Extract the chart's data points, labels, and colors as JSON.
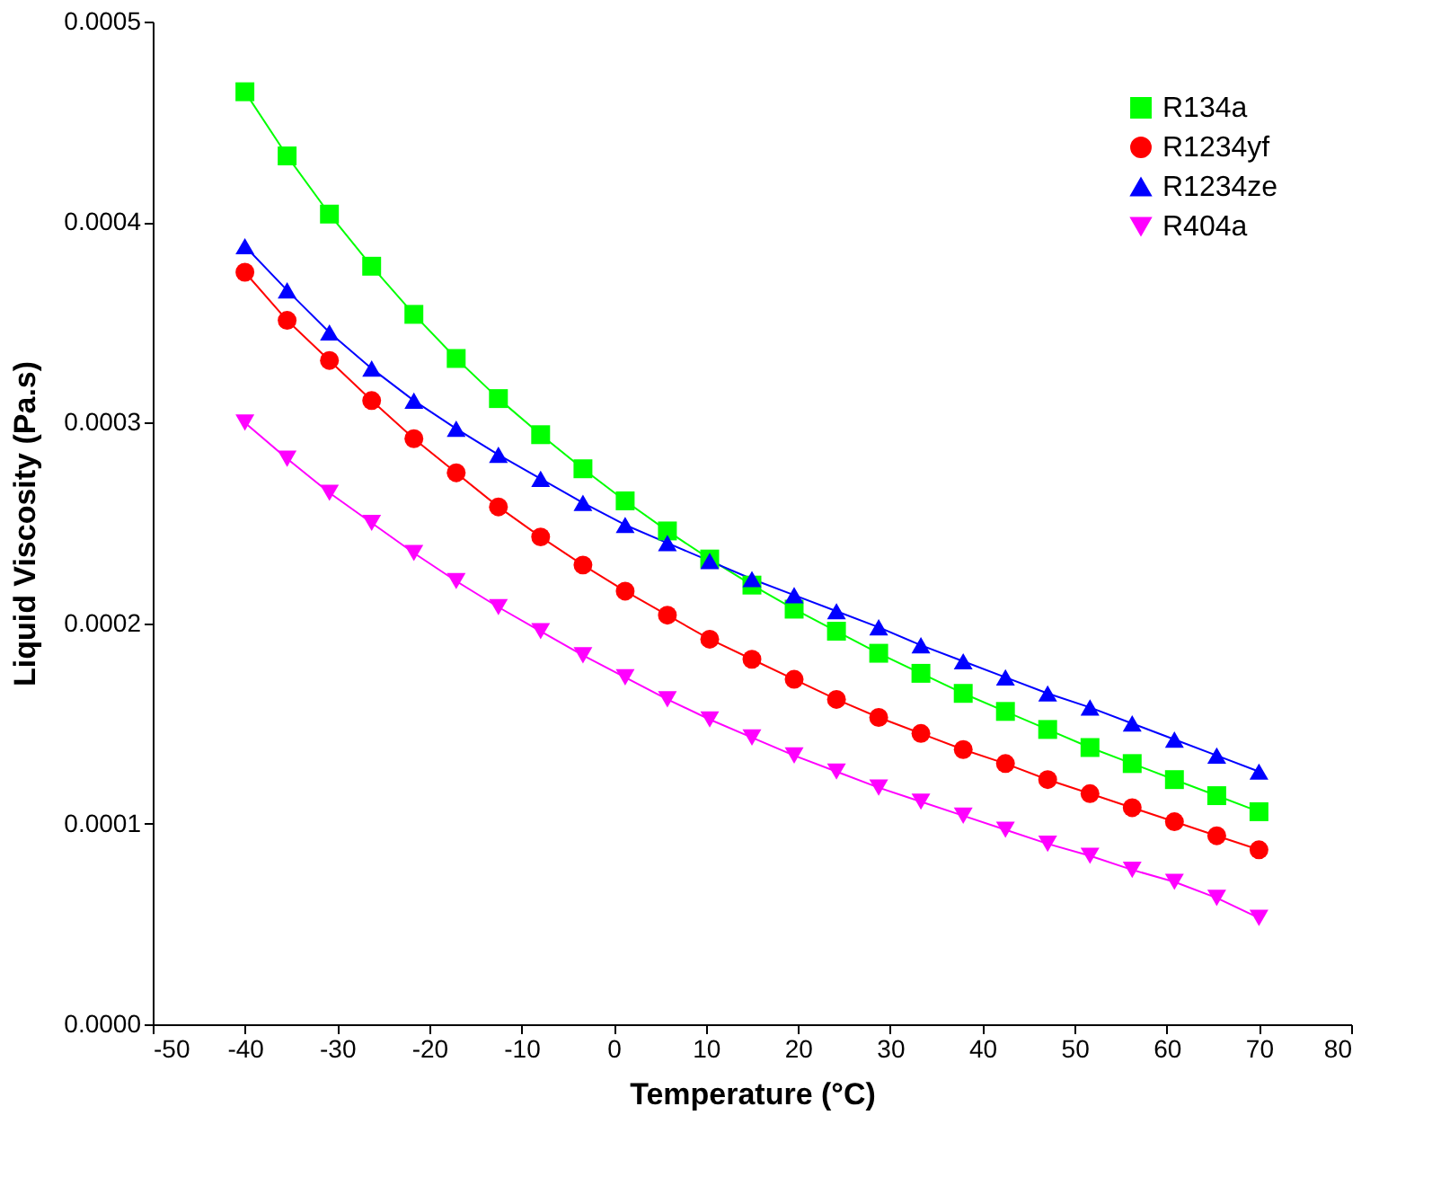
{
  "chart_data": {
    "type": "line",
    "xlabel": "Temperature (°C)",
    "ylabel": "Liquid Viscosity (Pa.s)",
    "x": [
      -40,
      -35.42,
      -30.83,
      -26.25,
      -21.67,
      -17.08,
      -12.5,
      -7.92,
      -3.33,
      1.25,
      5.83,
      10.42,
      15,
      19.58,
      24.17,
      28.75,
      33.33,
      37.92,
      42.5,
      47.08,
      51.67,
      56.25,
      60.83,
      65.42,
      70
    ],
    "series": [
      {
        "name": "R134a",
        "color": "#00ff00",
        "marker": "square",
        "values": [
          0.000465,
          0.000433,
          0.000404,
          0.000378,
          0.000354,
          0.000332,
          0.000312,
          0.000294,
          0.000277,
          0.000261,
          0.000246,
          0.000232,
          0.000219,
          0.000207,
          0.000196,
          0.000185,
          0.000175,
          0.000165,
          0.000156,
          0.000147,
          0.000138,
          0.00013,
          0.000122,
          0.000114,
          0.000106
        ]
      },
      {
        "name": "R1234yf",
        "color": "#ff0000",
        "marker": "circle",
        "values": [
          0.000375,
          0.000351,
          0.000331,
          0.000311,
          0.000292,
          0.000275,
          0.000258,
          0.000243,
          0.000229,
          0.000216,
          0.000204,
          0.000192,
          0.000182,
          0.000172,
          0.000162,
          0.000153,
          0.000145,
          0.000137,
          0.00013,
          0.000122,
          0.000115,
          0.000108,
          0.000101,
          9.4e-05,
          8.7e-05
        ]
      },
      {
        "name": "R1234ze",
        "color": "#0000ff",
        "marker": "triangle",
        "values": [
          0.000388,
          0.000366,
          0.000345,
          0.000327,
          0.000311,
          0.000297,
          0.000284,
          0.000272,
          0.00026,
          0.000249,
          0.00024,
          0.000231,
          0.000222,
          0.000214,
          0.000206,
          0.000198,
          0.000189,
          0.000181,
          0.000173,
          0.000165,
          0.000158,
          0.00015,
          0.000142,
          0.000134,
          0.000126
        ]
      },
      {
        "name": "R404a",
        "color": "#ff00ff",
        "marker": "triangle-down",
        "values": [
          0.0003,
          0.000282,
          0.000265,
          0.00025,
          0.000235,
          0.000221,
          0.000208,
          0.000196,
          0.000184,
          0.000173,
          0.000162,
          0.000152,
          0.000143,
          0.000134,
          0.000126,
          0.000118,
          0.000111,
          0.000104,
          9.7e-05,
          9e-05,
          8.4e-05,
          7.7e-05,
          7.1e-05,
          6.3e-05,
          5.3e-05
        ]
      }
    ],
    "xlim": [
      -50,
      80
    ],
    "xticks": [
      -50,
      -40,
      -30,
      -20,
      -10,
      0,
      10,
      20,
      30,
      40,
      50,
      60,
      70,
      80
    ],
    "ylim": [
      0,
      0.0005
    ],
    "yticks": [
      {
        "value": 0,
        "label": "0.0000"
      },
      0.0001,
      0.0002,
      0.0003,
      0.0004,
      0.0005
    ],
    "legend": "top right",
    "grid": false,
    "line_style": "solid"
  }
}
